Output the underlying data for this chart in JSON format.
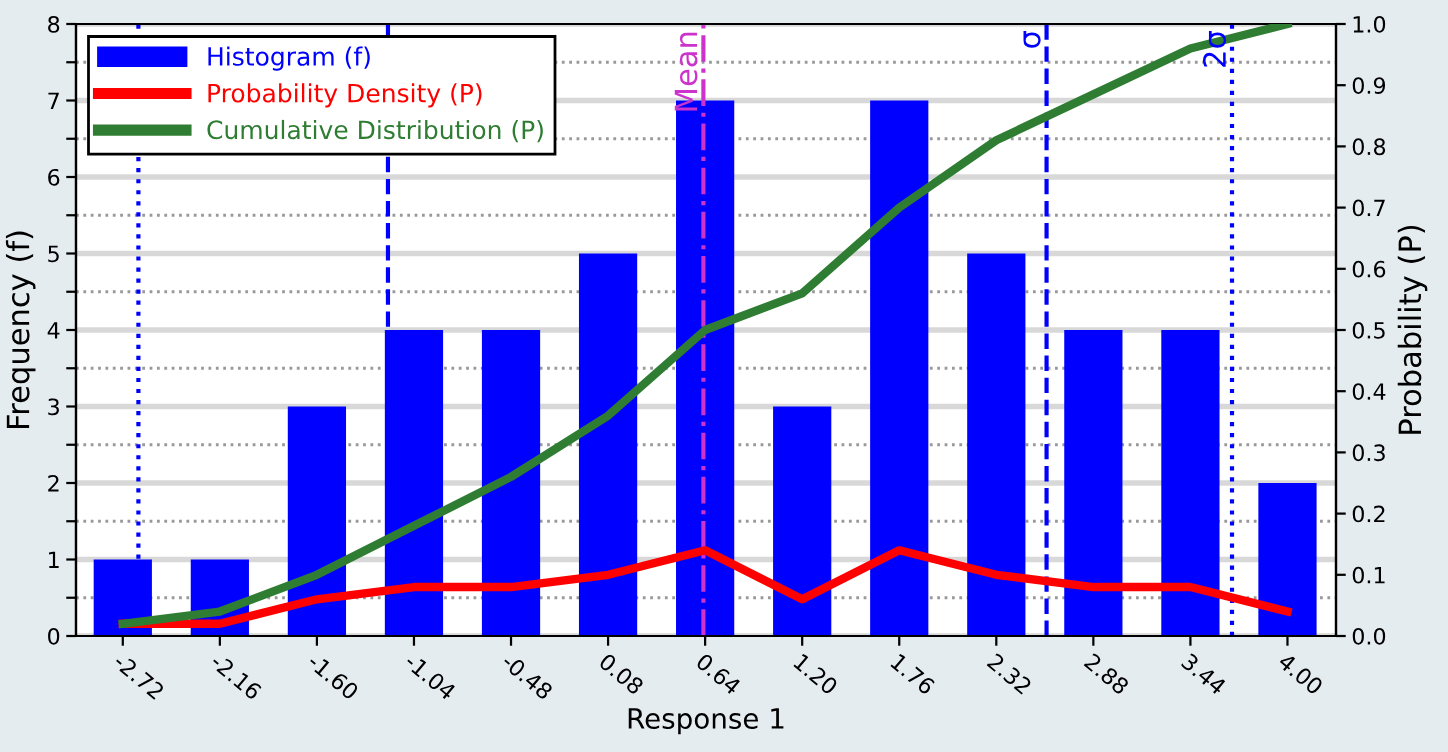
{
  "chart_data": {
    "type": "bar",
    "xlabel": "Response 1",
    "ylabel": "Frequency (f)",
    "y2label": "Probability (P)",
    "x": [
      -2.72,
      -2.16,
      -1.6,
      -1.04,
      -0.48,
      0.08,
      0.64,
      1.2,
      1.76,
      2.32,
      2.88,
      3.44,
      4.0
    ],
    "xlim": [
      -2.99,
      4.28
    ],
    "xticks": [
      {
        "value": -2.72,
        "label": "-2.72"
      },
      {
        "value": -2.16,
        "label": "-2.16"
      },
      {
        "value": -1.6,
        "label": "-1.60"
      },
      {
        "value": -1.04,
        "label": "-1.04"
      },
      {
        "value": -0.48,
        "label": "-0.48"
      },
      {
        "value": 0.08,
        "label": "0.08"
      },
      {
        "value": 0.64,
        "label": "0.64"
      },
      {
        "value": 1.2,
        "label": "1.20"
      },
      {
        "value": 1.76,
        "label": "1.76"
      },
      {
        "value": 2.32,
        "label": "2.32"
      },
      {
        "value": 2.88,
        "label": "2.88"
      },
      {
        "value": 3.44,
        "label": "3.44"
      },
      {
        "value": 4.0,
        "label": "4.00"
      }
    ],
    "ylim": [
      0,
      8
    ],
    "yticks": [
      0,
      {
        "value": 0.5,
        "label": null
      },
      1,
      {
        "value": 1.5,
        "label": null
      },
      2,
      {
        "value": 2.5,
        "label": null
      },
      3,
      {
        "value": 3.5,
        "label": null
      },
      4,
      {
        "value": 4.5,
        "label": null
      },
      5,
      {
        "value": 5.5,
        "label": null
      },
      6,
      {
        "value": 6.5,
        "label": null
      },
      7,
      {
        "value": 7.5,
        "label": null
      },
      8
    ],
    "y2lim": [
      0,
      1
    ],
    "y2ticks": [
      {
        "value": 0,
        "label": "0.0"
      },
      0.1,
      0.2,
      0.3,
      0.4,
      0.5,
      0.6,
      0.7,
      0.8,
      0.9,
      {
        "value": 1,
        "label": "1.0"
      }
    ],
    "series": [
      {
        "name": "Histogram (f)",
        "color": "#0000ff",
        "values": [
          1,
          1,
          3,
          4,
          4,
          5,
          7,
          3,
          7,
          5,
          4,
          4,
          2
        ]
      },
      {
        "name": "Probability Density (P)",
        "type": "line",
        "axis": "y2",
        "color": "#ff0000",
        "values": [
          0.02,
          0.02,
          0.06,
          0.08,
          0.08,
          0.1,
          0.14,
          0.06,
          0.14,
          0.1,
          0.08,
          0.08,
          0.04
        ]
      },
      {
        "name": "Cumulative Distribution (P)",
        "type": "line",
        "axis": "y2",
        "color": "#2e7d32",
        "values": [
          0.02,
          0.04,
          0.1,
          0.18,
          0.26,
          0.36,
          0.5,
          0.56,
          0.7,
          0.81,
          0.885,
          0.96,
          1.0
        ]
      }
    ],
    "ref_lines": [
      {
        "axis": "x",
        "value": -2.63,
        "label": null,
        "color": "#0000ff",
        "line_style": "dotted"
      },
      {
        "axis": "x",
        "value": -1.19,
        "label": null,
        "color": "#0000ff",
        "line_style": "dashed"
      },
      {
        "axis": "x",
        "value": 0.63,
        "label": "Mean",
        "color": "#cc33cc",
        "line_style": "dashdot"
      },
      {
        "axis": "x",
        "value": 2.61,
        "label": "σ",
        "color": "#0000ff",
        "line_style": "dashed"
      },
      {
        "axis": "x",
        "value": 3.68,
        "label": "2σ",
        "color": "#0000ff",
        "line_style": "dotted"
      }
    ],
    "grid": "y",
    "legend": "top left",
    "marker": "none",
    "line_style": "solid"
  }
}
